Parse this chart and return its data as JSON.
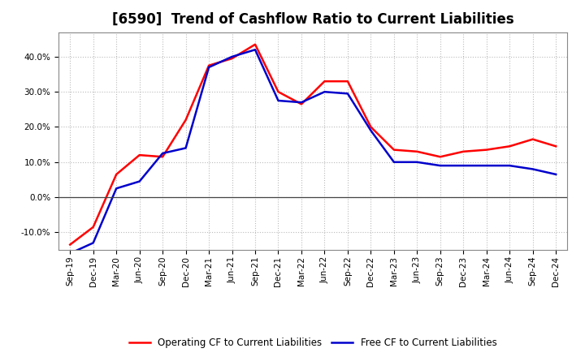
{
  "title": "[6590]  Trend of Cashflow Ratio to Current Liabilities",
  "x_labels": [
    "Sep-19",
    "Dec-19",
    "Mar-20",
    "Jun-20",
    "Sep-20",
    "Dec-20",
    "Mar-21",
    "Jun-21",
    "Sep-21",
    "Dec-21",
    "Mar-22",
    "Jun-22",
    "Sep-22",
    "Dec-22",
    "Mar-23",
    "Jun-23",
    "Sep-23",
    "Dec-23",
    "Mar-24",
    "Jun-24",
    "Sep-24",
    "Dec-24"
  ],
  "operating_cf": [
    -13.5,
    -8.5,
    6.5,
    12.0,
    11.5,
    22.0,
    37.5,
    39.5,
    43.5,
    30.0,
    26.5,
    33.0,
    33.0,
    20.0,
    13.5,
    13.0,
    11.5,
    13.0,
    13.5,
    14.5,
    16.5,
    14.5
  ],
  "free_cf": [
    -16.0,
    -13.0,
    2.5,
    4.5,
    12.5,
    14.0,
    37.0,
    40.0,
    42.0,
    27.5,
    27.0,
    30.0,
    29.5,
    19.0,
    10.0,
    10.0,
    9.0,
    9.0,
    9.0,
    9.0,
    8.0,
    6.5
  ],
  "operating_color": "#ff0000",
  "free_color": "#0000cc",
  "ylim": [
    -15,
    47
  ],
  "yticks": [
    -10,
    0,
    10,
    20,
    30,
    40
  ],
  "background_color": "#ffffff",
  "plot_bg_color": "#ffffff",
  "grid_color": "#bbbbbb",
  "legend_labels": [
    "Operating CF to Current Liabilities",
    "Free CF to Current Liabilities"
  ],
  "title_fontsize": 12,
  "tick_fontsize": 7.5,
  "legend_fontsize": 8.5
}
